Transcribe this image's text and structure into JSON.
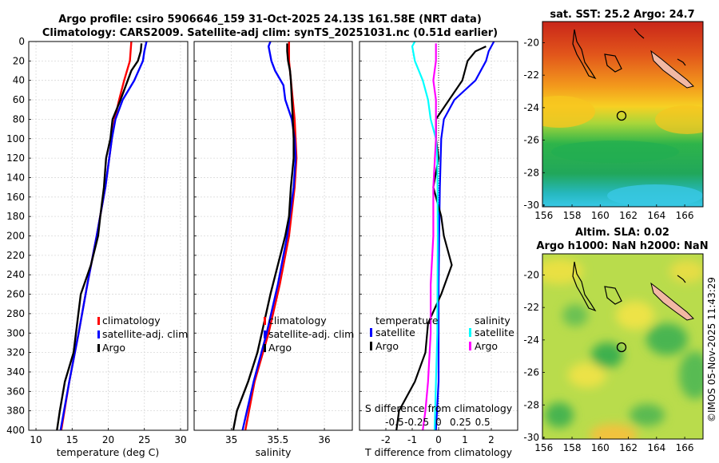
{
  "header": {
    "title_line1": "Argo profile: csiro 5906646_159 31-Oct-2025 24.13S 161.58E (NRT data)",
    "title_line2": "Climatology: CARS2009. Satellite-adj clim: synTS_20251031.nc (0.51d earlier)"
  },
  "colors": {
    "climatology": "#ff0000",
    "satellite": "#0000ff",
    "argo": "#000000",
    "s_satellite": "#00ffff",
    "s_argo": "#ff00ff"
  },
  "chart_data": [
    {
      "type": "line",
      "name": "temperature-profile",
      "xlabel": "temperature (deg C)",
      "ylabel": "",
      "xlim": [
        9,
        31
      ],
      "ylim": [
        400,
        0
      ],
      "grid": true,
      "xticks": [
        10,
        15,
        20,
        25,
        30
      ],
      "yticks": [
        0,
        20,
        40,
        60,
        80,
        100,
        120,
        140,
        160,
        180,
        200,
        220,
        240,
        260,
        280,
        300,
        320,
        340,
        360,
        380,
        400
      ],
      "legend": {
        "position": "lower-right",
        "entries": [
          "climatology",
          "satellite-adj. clim",
          "Argo"
        ]
      },
      "series": [
        {
          "name": "climatology",
          "color": "#ff0000",
          "depth": [
            0,
            10,
            20,
            40,
            60,
            80,
            100,
            150,
            200,
            250,
            300,
            350,
            400
          ],
          "values": [
            23.2,
            23.1,
            23.0,
            22.2,
            21.5,
            20.9,
            20.5,
            19.6,
            18.4,
            17.1,
            15.9,
            14.6,
            13.5
          ]
        },
        {
          "name": "satellite-adj. clim",
          "color": "#0000ff",
          "depth": [
            0,
            10,
            20,
            40,
            60,
            80,
            100,
            150,
            200,
            250,
            300,
            350,
            400
          ],
          "values": [
            25.3,
            25.0,
            24.8,
            23.6,
            22.0,
            21.0,
            20.5,
            19.6,
            18.4,
            17.1,
            15.9,
            14.6,
            13.4
          ]
        },
        {
          "name": "Argo",
          "color": "#000000",
          "depth": [
            2,
            10,
            20,
            30,
            40,
            60,
            80,
            100,
            120,
            150,
            180,
            200,
            230,
            260,
            290,
            320,
            350,
            380,
            400
          ],
          "values": [
            24.6,
            24.5,
            24.1,
            23.2,
            22.7,
            21.7,
            20.6,
            20.3,
            19.7,
            19.4,
            18.9,
            18.6,
            17.6,
            16.2,
            15.7,
            15.2,
            14.0,
            13.3,
            12.9
          ]
        }
      ]
    },
    {
      "type": "line",
      "name": "salinity-profile",
      "xlabel": "salinity",
      "ylabel": "",
      "xlim": [
        34.6,
        36.3
      ],
      "ylim": [
        400,
        0
      ],
      "grid": true,
      "xticks": [
        35,
        35.5,
        36
      ],
      "xtick_labels": [
        "35",
        "35.5",
        "36"
      ],
      "legend": {
        "position": "lower-right",
        "entries": [
          "climatology",
          "satellite-adj. clim",
          "Argo"
        ]
      },
      "series": [
        {
          "name": "climatology",
          "color": "#ff0000",
          "depth": [
            0,
            20,
            50,
            80,
            100,
            120,
            150,
            200,
            250,
            300,
            350,
            400
          ],
          "values": [
            35.62,
            35.62,
            35.65,
            35.68,
            35.69,
            35.7,
            35.68,
            35.62,
            35.52,
            35.4,
            35.25,
            35.15
          ]
        },
        {
          "name": "satellite-adj. clim",
          "color": "#0000ff",
          "depth": [
            0,
            5,
            20,
            30,
            45,
            60,
            80,
            100,
            120,
            150,
            200,
            250,
            300,
            350,
            400
          ],
          "values": [
            35.42,
            35.4,
            35.43,
            35.47,
            35.56,
            35.58,
            35.65,
            35.68,
            35.69,
            35.67,
            35.6,
            35.5,
            35.38,
            35.24,
            35.12
          ]
        },
        {
          "name": "Argo",
          "color": "#000000",
          "depth": [
            2,
            10,
            20,
            30,
            40,
            60,
            80,
            100,
            120,
            150,
            180,
            200,
            230,
            260,
            290,
            320,
            350,
            380,
            400
          ],
          "values": [
            35.6,
            35.6,
            35.61,
            35.63,
            35.64,
            35.65,
            35.66,
            35.67,
            35.67,
            35.64,
            35.62,
            35.58,
            35.5,
            35.42,
            35.35,
            35.28,
            35.18,
            35.06,
            35.02
          ]
        }
      ]
    },
    {
      "type": "line",
      "name": "difference-profile",
      "xlabel": "T difference from climatology",
      "xlabel_top": "S difference from climatology",
      "xlim": [
        -3,
        3
      ],
      "ylim": [
        400,
        0
      ],
      "grid": true,
      "xticks": [
        -2,
        -1,
        0,
        1,
        2
      ],
      "xticks_top_pos": [
        -1.67,
        -0.83,
        0,
        0.83,
        1.67
      ],
      "xticks_top_labels": [
        "-0.5",
        "-0.25",
        "0",
        "0.25",
        "0.5"
      ],
      "legend": {
        "position": "lower",
        "temperature_title": "temperature",
        "salinity_title": "salinity",
        "entries_t": [
          "satellite",
          "Argo"
        ],
        "entries_s": [
          "satellite",
          "Argo"
        ]
      },
      "series": [
        {
          "name": "T satellite",
          "color": "#0000ff",
          "depth": [
            0,
            10,
            20,
            40,
            60,
            80,
            100,
            150,
            200,
            250,
            300,
            350,
            400
          ],
          "values": [
            2.1,
            1.9,
            1.8,
            1.4,
            0.6,
            0.2,
            0.1,
            0.05,
            0.02,
            0.0,
            0.0,
            0.0,
            -0.1
          ]
        },
        {
          "name": "T Argo",
          "color": "#000000",
          "depth": [
            5,
            10,
            20,
            30,
            40,
            60,
            80,
            100,
            120,
            150,
            180,
            200,
            230,
            260,
            290,
            320,
            350,
            380,
            400
          ],
          "values": [
            1.8,
            1.4,
            1.1,
            1.0,
            0.9,
            0.4,
            -0.1,
            -0.1,
            0.0,
            -0.2,
            0.1,
            0.2,
            0.5,
            0.1,
            -0.4,
            -0.5,
            -0.9,
            -1.5,
            -1.6
          ]
        },
        {
          "name": "S satellite",
          "color": "#00ffff",
          "depth": [
            0,
            5,
            20,
            40,
            60,
            80,
            100,
            120,
            150,
            200,
            300,
            400
          ],
          "values": [
            -0.9,
            -1.0,
            -0.9,
            -0.6,
            -0.4,
            -0.3,
            -0.1,
            -0.05,
            -0.04,
            -0.03,
            -0.05,
            -0.15
          ]
        },
        {
          "name": "S Argo",
          "color": "#ff00ff",
          "depth": [
            2,
            20,
            40,
            60,
            80,
            100,
            150,
            200,
            250,
            300,
            350,
            380,
            400
          ],
          "values": [
            -0.1,
            -0.1,
            -0.2,
            -0.1,
            -0.1,
            -0.1,
            -0.2,
            -0.2,
            -0.3,
            -0.3,
            -0.4,
            -0.5,
            -0.6
          ]
        }
      ]
    },
    {
      "type": "heatmap",
      "name": "sst-map",
      "title": "sat. SST: 25.2  Argo: 24.7",
      "xticks": [
        156,
        158,
        160,
        162,
        164,
        166
      ],
      "yticks": [
        -20,
        -22,
        -24,
        -26,
        -28,
        -30
      ],
      "xlim": [
        155.9,
        167.3
      ],
      "ylim": [
        -30.1,
        -18.7
      ],
      "argo_position": [
        161.58,
        -24.13
      ]
    },
    {
      "type": "heatmap",
      "name": "sla-map",
      "title_line1": "Altim. SLA: 0.02",
      "title_line2": "Argo h1000: NaN h2000: NaN",
      "xticks": [
        156,
        158,
        160,
        162,
        164,
        166
      ],
      "yticks": [
        -20,
        -22,
        -24,
        -26,
        -28,
        -30
      ],
      "xlim": [
        155.9,
        167.3
      ],
      "ylim": [
        -30.1,
        -18.7
      ],
      "argo_position": [
        161.58,
        -24.13
      ]
    }
  ],
  "footer": {
    "timestamp": "©IMOS 05-Nov-2025 11:43:29"
  }
}
